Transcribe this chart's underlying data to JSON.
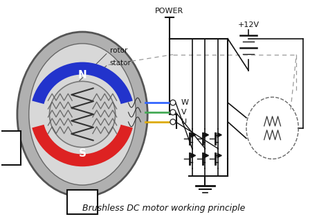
{
  "title": "Brushless DC motor working principle",
  "bg_color": "#ffffff",
  "north_color": "#dd2222",
  "south_color": "#2233cc",
  "stator_outer_color": "#aaaaaa",
  "stator_inner_color": "#c8c8c8",
  "rotor_color": "#bbbbbb",
  "wire_W_color": "#3366ff",
  "wire_V_color": "#44aa55",
  "wire_U_color": "#ddaa00",
  "line_color": "#111111",
  "dashed_color": "#999999",
  "power_label": "POWER",
  "voltage_label": "+12V",
  "rotor_label": "rotor",
  "stator_label": "stator",
  "caption": "Brushless DC motor working principle"
}
